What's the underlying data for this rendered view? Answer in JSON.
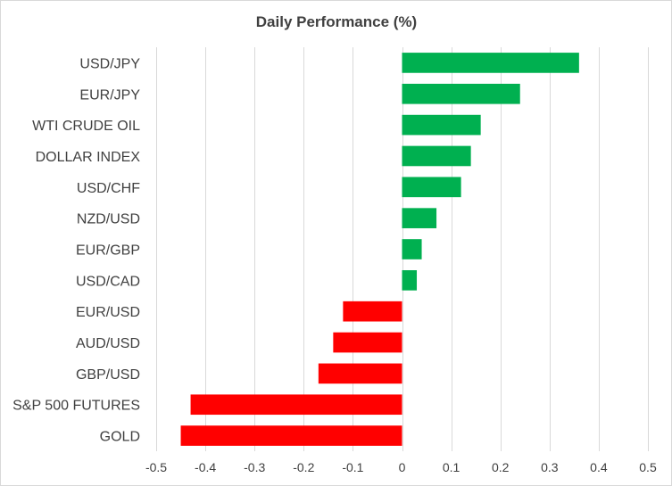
{
  "chart_data": {
    "type": "bar",
    "orientation": "horizontal",
    "title": "Daily Performance (%)",
    "xlabel": "",
    "ylabel": "",
    "xlim": [
      -0.5,
      0.5
    ],
    "xticks": [
      "-0.5",
      "-0.4",
      "-0.3",
      "-0.2",
      "-0.1",
      "0",
      "0.1",
      "0.2",
      "0.3",
      "0.4",
      "0.5"
    ],
    "xtick_values": [
      -0.5,
      -0.4,
      -0.3,
      -0.2,
      -0.1,
      0,
      0.1,
      0.2,
      0.3,
      0.4,
      0.5
    ],
    "grid": "vertical",
    "legend": "none",
    "categories": [
      "USD/JPY",
      "EUR/JPY",
      "WTI CRUDE OIL",
      "DOLLAR INDEX",
      "USD/CHF",
      "NZD/USD",
      "EUR/GBP",
      "USD/CAD",
      "EUR/USD",
      "AUD/USD",
      "GBP/USD",
      "S&P 500 FUTURES",
      "GOLD"
    ],
    "values": [
      0.36,
      0.24,
      0.16,
      0.14,
      0.12,
      0.07,
      0.04,
      0.03,
      -0.12,
      -0.14,
      -0.17,
      -0.43,
      -0.45
    ],
    "positive_color": "#00b050",
    "negative_color": "#ff0000"
  }
}
